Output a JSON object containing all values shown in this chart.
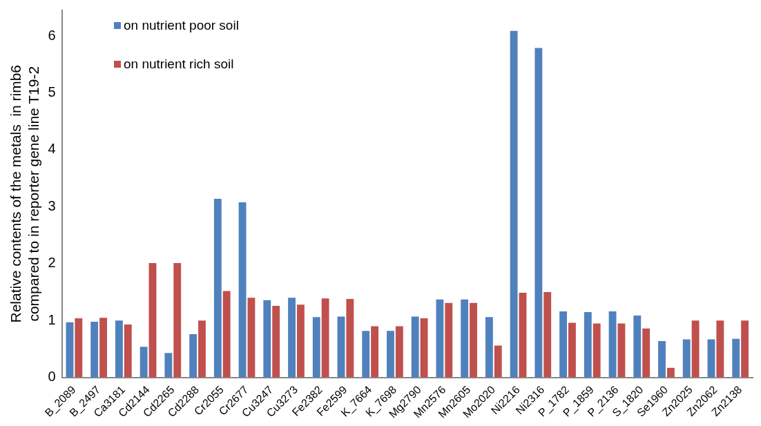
{
  "chart_data": {
    "type": "bar",
    "ylabel": "Relative contents of the metals  in rimb6\ncompared to in reporter gene line T19-2",
    "categories": [
      "B_2089",
      "B_2497",
      "Ca3181",
      "Cd2144",
      "Cd2265",
      "Cd2288",
      "Cr2055",
      "Cr2677",
      "Cu3247",
      "Cu3273",
      "Fe2382",
      "Fe2599",
      "K_7664",
      "K_7698",
      "Mg2790",
      "Mn2576",
      "Mn2605",
      "Mo2020",
      "Ni2216",
      "Ni2316",
      "P_1782",
      "P_1859",
      "P_2136",
      "S_1820",
      "Se1960",
      "Zn2025",
      "Zn2062",
      "Zn2138"
    ],
    "series": [
      {
        "name": "on nutrient poor soil",
        "color": "#4f81bd",
        "values": [
          0.98,
          0.99,
          1.01,
          0.55,
          0.44,
          0.77,
          3.15,
          3.09,
          1.37,
          1.41,
          1.07,
          1.08,
          0.83,
          0.83,
          1.08,
          1.38,
          1.38,
          1.07,
          6.1,
          5.8,
          1.17,
          1.16,
          1.17,
          1.1,
          0.65,
          0.68,
          0.68,
          0.69
        ]
      },
      {
        "name": "on nutrient rich soil",
        "color": "#c0504d",
        "values": [
          1.05,
          1.06,
          0.94,
          2.02,
          2.02,
          1.01,
          1.53,
          1.41,
          1.27,
          1.29,
          1.4,
          1.39,
          0.91,
          0.91,
          1.05,
          1.32,
          1.32,
          0.57,
          1.5,
          1.51,
          0.97,
          0.96,
          0.96,
          0.87,
          0.18,
          1.01,
          1.01,
          1.01
        ]
      }
    ],
    "ylim": [
      0,
      6.45
    ],
    "yticks": [
      0,
      1,
      2,
      3,
      4,
      5,
      6
    ],
    "grid": false,
    "legend": "top left"
  }
}
